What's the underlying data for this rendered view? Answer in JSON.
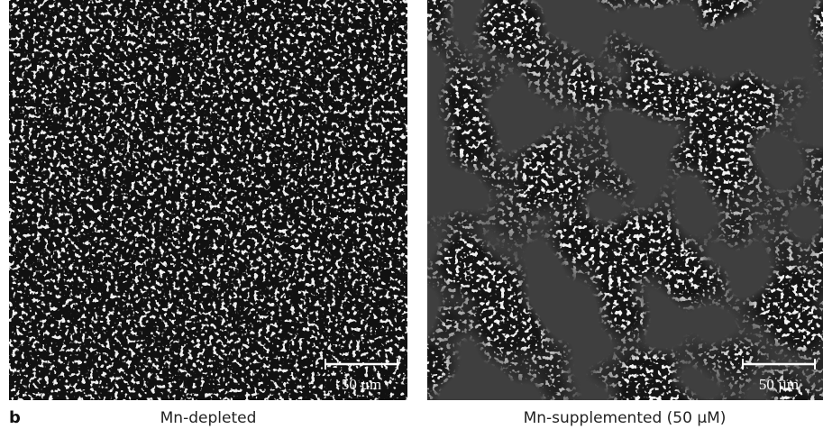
{
  "figure_letter": "b",
  "panels": [
    {
      "label": "Mn-depleted",
      "scale_bar": "50 µm"
    },
    {
      "label": "Mn-supplemented (50 μM)",
      "scale_bar": "50 µm"
    }
  ]
}
